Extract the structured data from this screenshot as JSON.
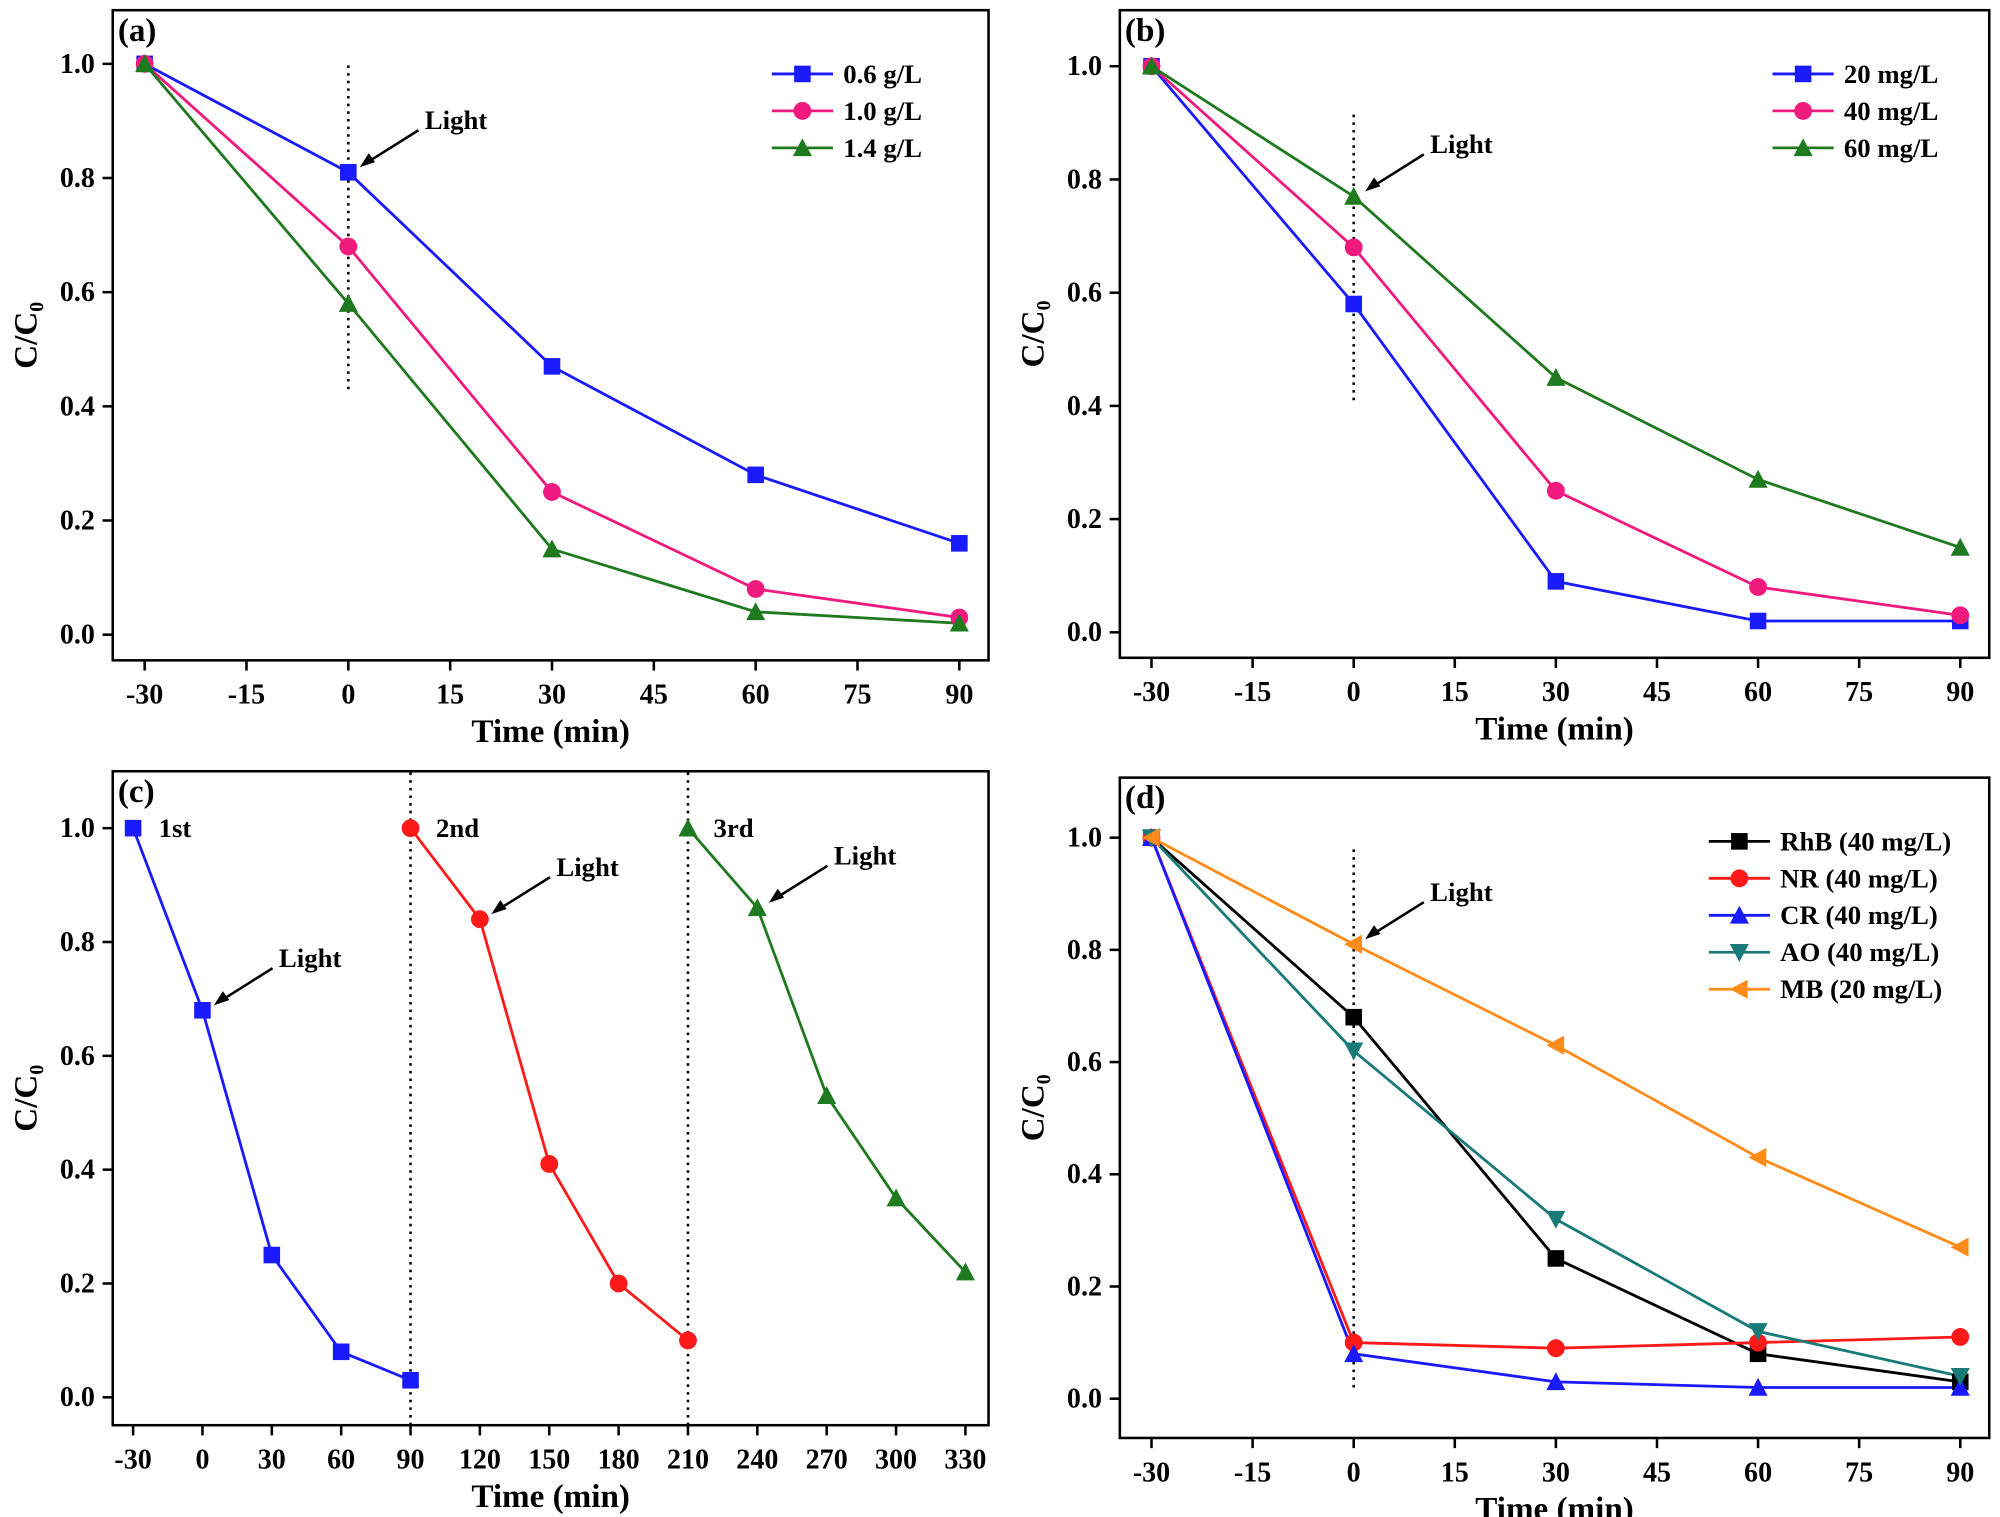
{
  "chart_data": [
    {
      "type": "line",
      "title": "(a)",
      "xlabel": "Time (min)",
      "ylabel": "C/C₀",
      "x": [
        -30,
        0,
        30,
        60,
        90
      ],
      "series": [
        {
          "name": "0.6 g/L",
          "color": "#1a1aff",
          "marker": "square",
          "values": [
            1.0,
            0.81,
            0.47,
            0.28,
            0.16
          ]
        },
        {
          "name": "1.0 g/L",
          "color": "#f0197d",
          "marker": "circle",
          "values": [
            1.0,
            0.68,
            0.25,
            0.08,
            0.03
          ]
        },
        {
          "name": "1.4 g/L",
          "color": "#1f7a1f",
          "marker": "triangle-up",
          "values": [
            1.0,
            0.58,
            0.15,
            0.04,
            0.02
          ]
        }
      ],
      "xlim": [
        -34.7,
        94.3
      ],
      "ylim": [
        -0.045,
        1.094
      ],
      "xticks": [
        -30,
        -15,
        0,
        15,
        30,
        45,
        60,
        75,
        90
      ],
      "yticks": [
        {
          "value": 0,
          "label": "0.0"
        },
        0.2,
        0.4,
        0.6,
        0.8,
        {
          "value": 1,
          "label": "1.0"
        }
      ],
      "legend": "upper right",
      "annotations": [
        {
          "text": "Light",
          "x": 0,
          "y": 0.81
        }
      ],
      "vlines": [
        {
          "x": 0,
          "y": [
            0.43,
            1.0
          ]
        }
      ]
    },
    {
      "type": "line",
      "title": "(b)",
      "xlabel": "Time (min)",
      "ylabel": "C/C₀",
      "x": [
        -30,
        0,
        30,
        60,
        90
      ],
      "series": [
        {
          "name": "20 mg/L",
          "color": "#1a1aff",
          "marker": "square",
          "values": [
            1.0,
            0.58,
            0.09,
            0.02,
            0.02
          ]
        },
        {
          "name": "40 mg/L",
          "color": "#f0197d",
          "marker": "circle",
          "values": [
            1.0,
            0.68,
            0.25,
            0.08,
            0.03
          ]
        },
        {
          "name": "60 mg/L",
          "color": "#1f7a1f",
          "marker": "triangle-up",
          "values": [
            1.0,
            0.77,
            0.45,
            0.27,
            0.15
          ]
        }
      ],
      "xlim": [
        -34.7,
        94.3
      ],
      "ylim": [
        -0.045,
        1.099
      ],
      "xticks": [
        -30,
        -15,
        0,
        15,
        30,
        45,
        60,
        75,
        90
      ],
      "yticks": [
        {
          "value": 0,
          "label": "0.0"
        },
        0.2,
        0.4,
        0.6,
        0.8,
        {
          "value": 1,
          "label": "1.0"
        }
      ],
      "legend": "upper right",
      "annotations": [
        {
          "text": "Light",
          "x": 0,
          "y": 0.77
        }
      ],
      "vlines": [
        {
          "x": 0,
          "y": [
            0.41,
            0.92
          ]
        }
      ]
    },
    {
      "type": "line",
      "title": "(c)",
      "xlabel": "Time (min)",
      "ylabel": "C/C₀",
      "x": [
        -30,
        0,
        30,
        60,
        90,
        120,
        150,
        180,
        210,
        240,
        270,
        300,
        330
      ],
      "series": [
        {
          "name": "1st",
          "color": "#1a1aff",
          "marker": "square",
          "values": [
            1.0,
            0.68,
            0.25,
            0.08,
            0.03,
            null,
            null,
            null,
            null,
            null,
            null,
            null,
            null
          ]
        },
        {
          "name": "2nd",
          "color": "#ff1a1a",
          "marker": "circle",
          "values": [
            null,
            null,
            null,
            null,
            1.0,
            0.84,
            0.41,
            0.2,
            0.1,
            null,
            null,
            null,
            null
          ]
        },
        {
          "name": "3rd",
          "color": "#1f7a1f",
          "marker": "triangle-up",
          "values": [
            null,
            null,
            null,
            null,
            null,
            null,
            null,
            null,
            1.0,
            0.86,
            0.53,
            0.35,
            0.22
          ]
        }
      ],
      "xlim": [
        -38.8,
        340
      ],
      "ylim": [
        -0.049,
        1.1
      ],
      "xticks": [
        -30,
        0,
        30,
        60,
        90,
        120,
        150,
        180,
        210,
        240,
        270,
        300,
        330
      ],
      "yticks": [
        {
          "value": 0,
          "label": "0.0"
        },
        0.2,
        0.4,
        0.6,
        0.8,
        {
          "value": 1,
          "label": "1.0"
        }
      ],
      "legend": "inline",
      "annotations": [
        {
          "text": "Light",
          "x": 0,
          "y": 0.68
        },
        {
          "text": "Light",
          "x": 120,
          "y": 0.84
        },
        {
          "text": "Light",
          "x": 240,
          "y": 0.86
        }
      ],
      "vlines": [
        {
          "x": 90,
          "y": [
            -0.049,
            1.1
          ]
        },
        {
          "x": 210,
          "y": [
            -0.049,
            1.1
          ]
        }
      ]
    },
    {
      "type": "line",
      "title": "(d)",
      "xlabel": "Time (min)",
      "ylabel": "C/C₀",
      "x": [
        -30,
        0,
        30,
        60,
        90
      ],
      "series": [
        {
          "name": "RhB (40 mg/L)",
          "color": "#000000",
          "marker": "square",
          "values": [
            1.0,
            0.68,
            0.25,
            0.08,
            0.03
          ]
        },
        {
          "name": "NR (40 mg/L)",
          "color": "#ff1a1a",
          "marker": "circle",
          "values": [
            1.0,
            0.1,
            0.09,
            0.1,
            0.11
          ]
        },
        {
          "name": "CR (40 mg/L)",
          "color": "#1a1aff",
          "marker": "triangle-up",
          "values": [
            1.0,
            0.08,
            0.03,
            0.02,
            0.02
          ]
        },
        {
          "name": "AO (40 mg/L)",
          "color": "#1a7a7a",
          "marker": "triangle-down",
          "values": [
            1.0,
            0.62,
            0.32,
            0.12,
            0.04
          ]
        },
        {
          "name": "MB (20 mg/L)",
          "color": "#ff8c1a",
          "marker": "triangle-left",
          "values": [
            1.0,
            0.81,
            0.63,
            0.43,
            0.27
          ]
        }
      ],
      "xlim": [
        -34.7,
        94.3
      ],
      "ylim": [
        -0.07,
        1.107
      ],
      "xticks": [
        -30,
        -15,
        0,
        15,
        30,
        45,
        60,
        75,
        90
      ],
      "yticks": [
        {
          "value": 0,
          "label": "0.0"
        },
        0.2,
        0.4,
        0.6,
        0.8,
        {
          "value": 1,
          "label": "1.0"
        }
      ],
      "legend": "upper right",
      "annotations": [
        {
          "text": "Light",
          "x": 0,
          "y": 0.81
        }
      ],
      "vlines": [
        {
          "x": 0,
          "y": [
            0.02,
            0.98
          ]
        }
      ]
    }
  ]
}
